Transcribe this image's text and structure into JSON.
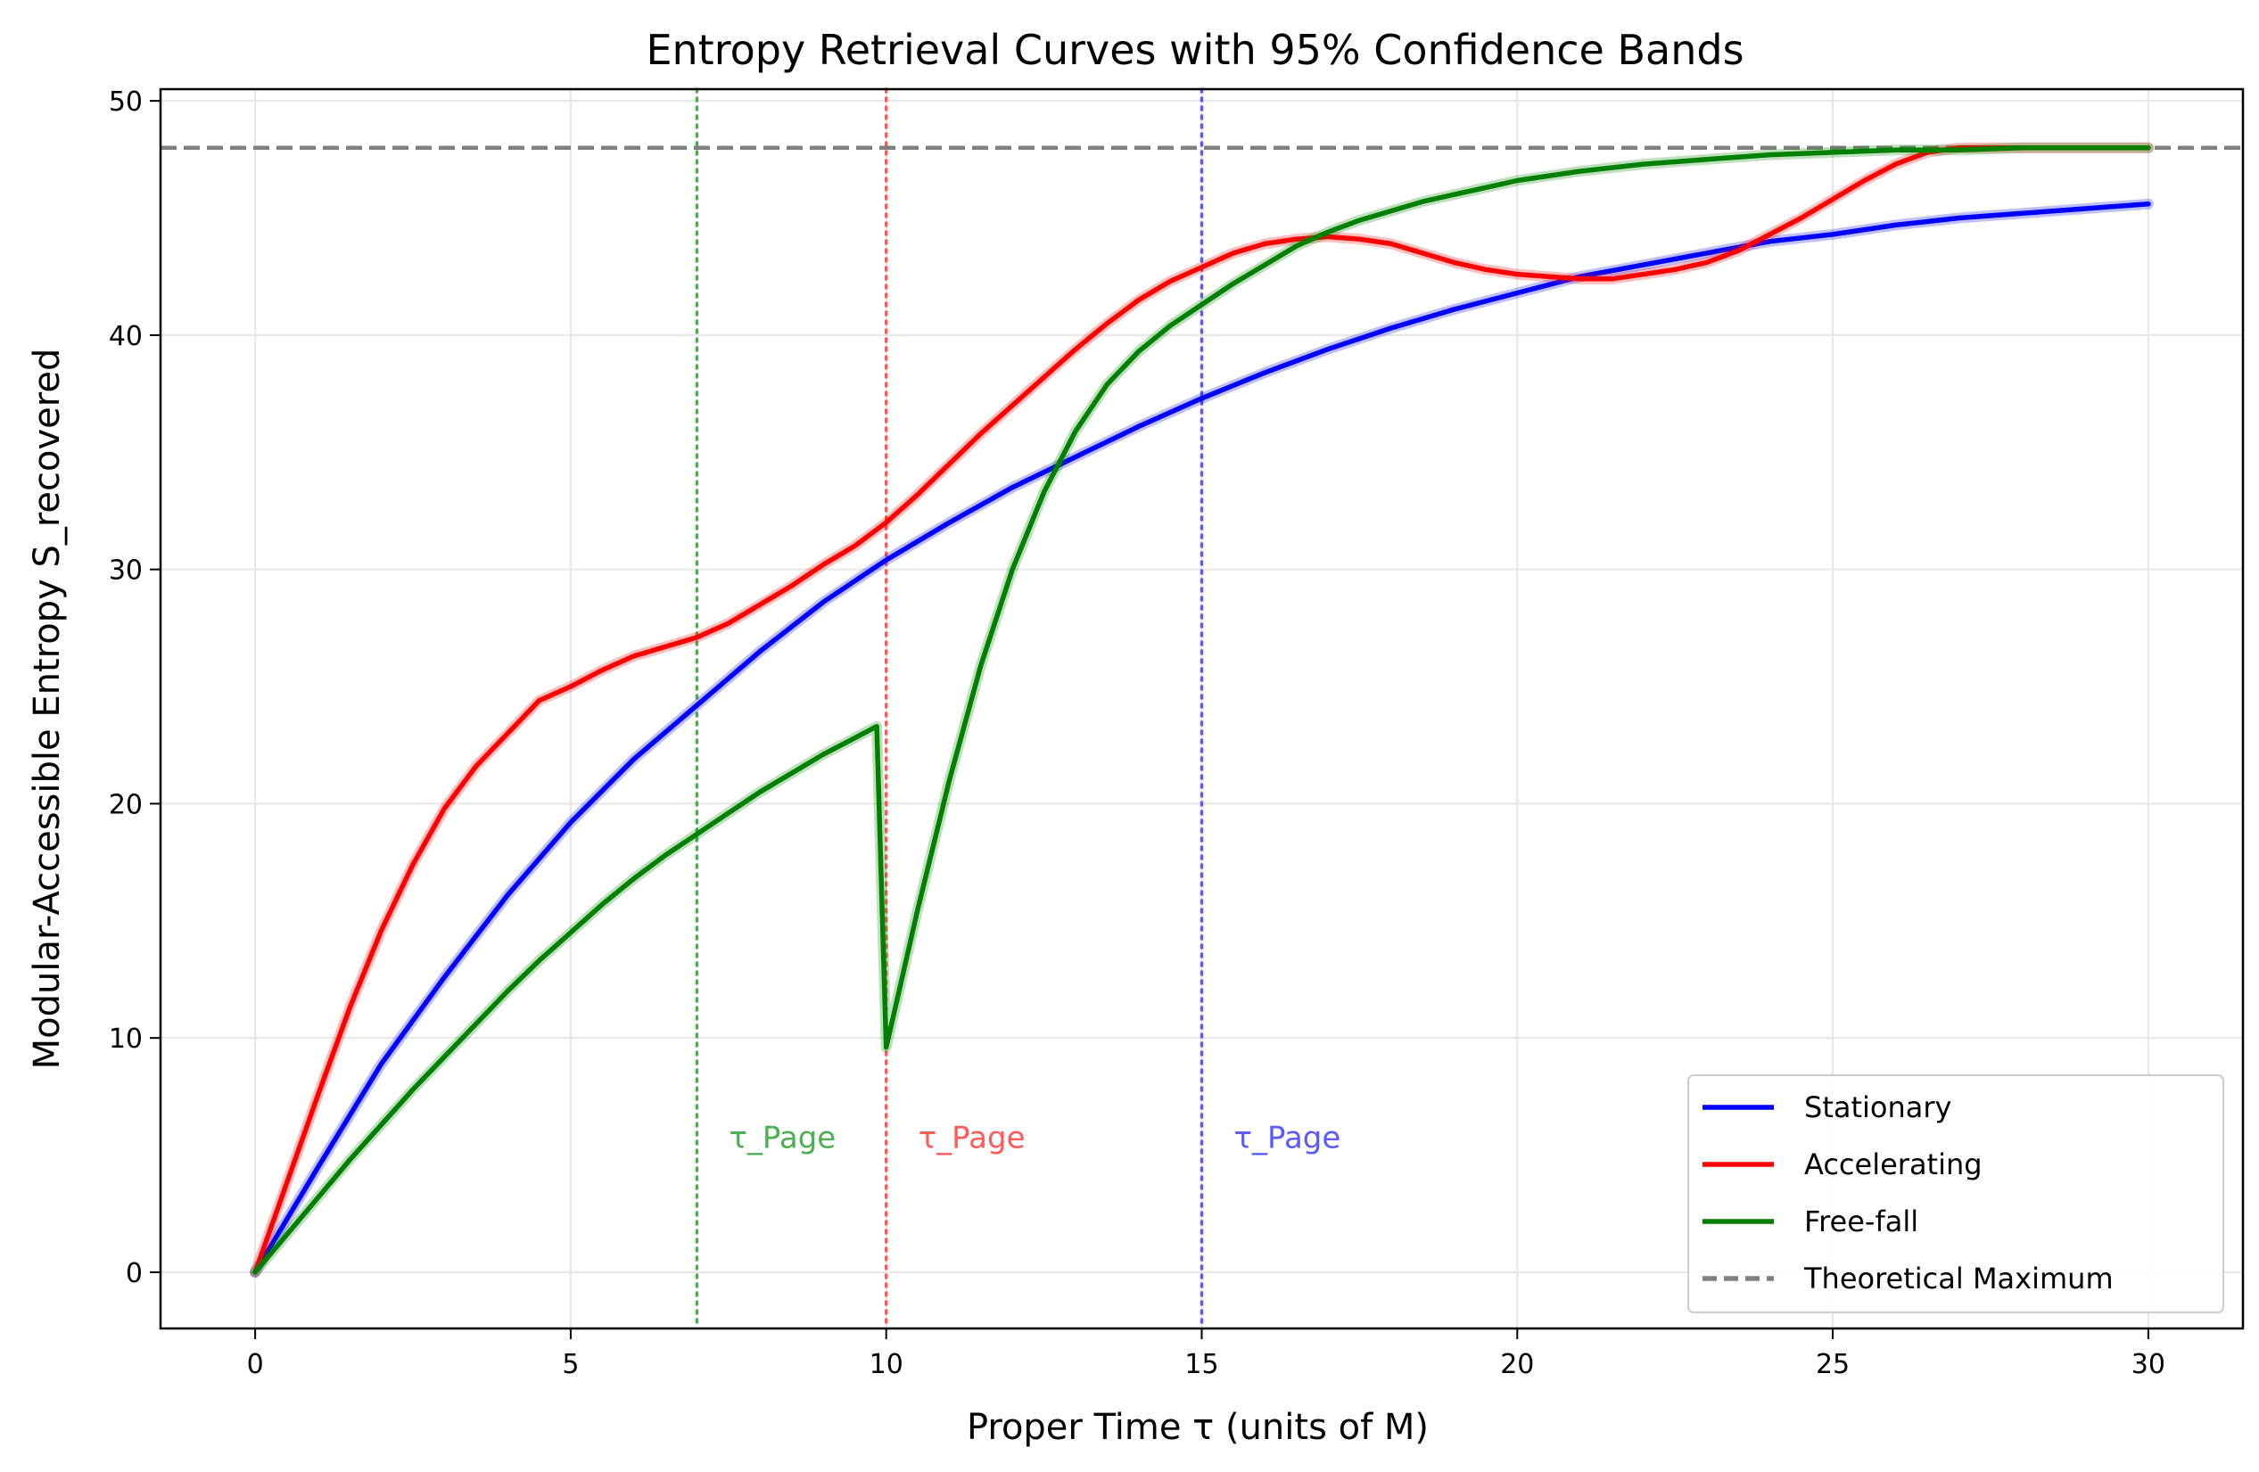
{
  "chart_data": {
    "type": "line",
    "title": "Entropy Retrieval Curves with 95% Confidence Bands",
    "xlabel": "Proper Time τ (units of M)",
    "ylabel": "Modular-Accessible Entropy S_recovered",
    "xlim": [
      -1.5,
      31.5
    ],
    "ylim": [
      -2.4,
      50.5
    ],
    "xticks": [
      0,
      5,
      10,
      15,
      20,
      25,
      30
    ],
    "yticks": [
      0,
      10,
      20,
      30,
      40,
      50
    ],
    "grid": true,
    "legend_position": "lower-right",
    "series": [
      {
        "name": "Stationary",
        "color": "#0000ff",
        "x": [
          0,
          1,
          2,
          3,
          4,
          5,
          6,
          7,
          8,
          9,
          10,
          11,
          12,
          13,
          14,
          15,
          16,
          17,
          18,
          19,
          20,
          21,
          22,
          23,
          24,
          25,
          26,
          27,
          28,
          29,
          30
        ],
        "y": [
          0,
          4.5,
          8.9,
          12.6,
          16.1,
          19.2,
          21.9,
          24.2,
          26.5,
          28.6,
          30.4,
          32.0,
          33.5,
          34.8,
          36.1,
          37.3,
          38.4,
          39.4,
          40.3,
          41.1,
          41.8,
          42.5,
          43.0,
          43.5,
          44.0,
          44.3,
          44.7,
          45.0,
          45.2,
          45.4,
          45.6
        ]
      },
      {
        "name": "Accelerating",
        "color": "#ff0000",
        "x": [
          0,
          0.5,
          1,
          1.5,
          2,
          2.5,
          3,
          3.5,
          4,
          4.5,
          5,
          5.5,
          6,
          6.5,
          7,
          7.5,
          8,
          8.5,
          9,
          9.5,
          10,
          10.5,
          11,
          11.5,
          12,
          12.5,
          13,
          13.5,
          14,
          14.5,
          15,
          15.5,
          16,
          16.5,
          17,
          17.5,
          18,
          18.5,
          19,
          19.5,
          20,
          20.5,
          21,
          21.5,
          22,
          22.5,
          23,
          23.5,
          24,
          24.5,
          25,
          25.5,
          26,
          26.5,
          27,
          27.5,
          28,
          28.5,
          29,
          29.5,
          30
        ],
        "y": [
          0,
          3.8,
          7.6,
          11.3,
          14.6,
          17.4,
          19.8,
          21.6,
          23.0,
          24.4,
          25.0,
          25.7,
          26.3,
          26.7,
          27.1,
          27.7,
          28.5,
          29.3,
          30.2,
          31.0,
          32.0,
          33.2,
          34.5,
          35.8,
          37.0,
          38.2,
          39.4,
          40.5,
          41.5,
          42.3,
          42.9,
          43.5,
          43.9,
          44.1,
          44.2,
          44.1,
          43.9,
          43.5,
          43.1,
          42.8,
          42.6,
          42.5,
          42.4,
          42.4,
          42.6,
          42.8,
          43.1,
          43.6,
          44.3,
          45.0,
          45.8,
          46.6,
          47.3,
          47.8,
          48.0,
          48.0,
          48.0,
          48.0,
          48.0,
          48.0,
          48.0
        ]
      },
      {
        "name": "Free-fall",
        "color": "#008000",
        "x": [
          0,
          0.5,
          1,
          1.5,
          2,
          2.5,
          3,
          3.5,
          4,
          4.5,
          5,
          5.5,
          6,
          6.5,
          7,
          7.5,
          8,
          8.5,
          9,
          9.5,
          9.85,
          10,
          10.5,
          11,
          11.5,
          12,
          12.5,
          13,
          13.5,
          14,
          14.5,
          15,
          15.5,
          16,
          16.5,
          17,
          17.5,
          18,
          18.5,
          19,
          19.5,
          20,
          21,
          22,
          23,
          24,
          25,
          26,
          27,
          28,
          29,
          30
        ],
        "y": [
          0,
          1.6,
          3.2,
          4.8,
          6.3,
          7.8,
          9.2,
          10.6,
          12.0,
          13.3,
          14.5,
          15.7,
          16.8,
          17.8,
          18.7,
          19.6,
          20.5,
          21.3,
          22.1,
          22.8,
          23.3,
          9.6,
          15.5,
          21.0,
          25.9,
          30.0,
          33.3,
          35.9,
          37.9,
          39.3,
          40.4,
          41.3,
          42.2,
          43.0,
          43.8,
          44.4,
          44.9,
          45.3,
          45.7,
          46.0,
          46.3,
          46.6,
          47.0,
          47.3,
          47.5,
          47.7,
          47.8,
          47.9,
          47.9,
          48.0,
          48.0,
          48.0
        ]
      },
      {
        "name": "Theoretical Maximum",
        "color": "#808080",
        "constant_y": 48
      }
    ],
    "vertical_lines": [
      {
        "x": 7,
        "color": "#4caf50",
        "label": "τ_Page"
      },
      {
        "x": 10,
        "color": "#ff5a5a",
        "label": "τ_Page"
      },
      {
        "x": 15,
        "color": "#5a5aff",
        "label": "τ_Page"
      }
    ]
  }
}
